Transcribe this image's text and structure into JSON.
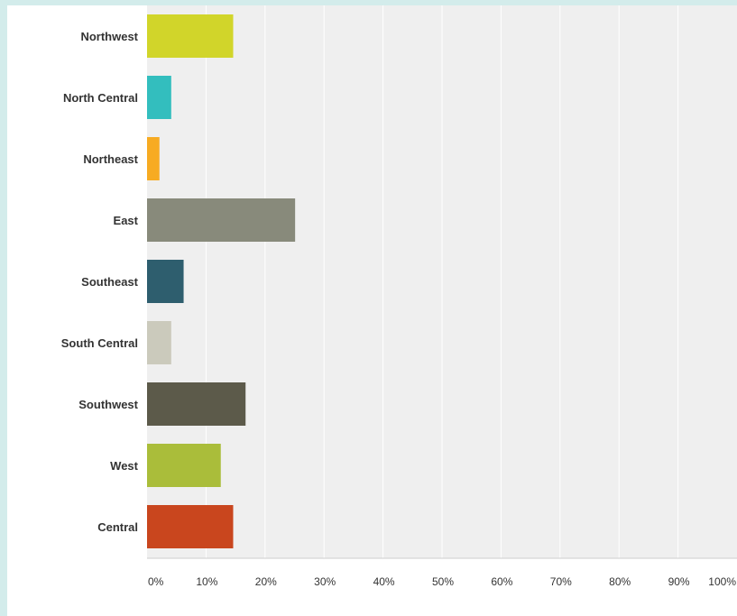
{
  "chart_data": {
    "type": "bar",
    "orientation": "horizontal",
    "categories": [
      "Northwest",
      "North Central",
      "Northeast",
      "East",
      "Southeast",
      "South Central",
      "Southwest",
      "West",
      "Central"
    ],
    "values": [
      14.6,
      4.1,
      2.1,
      25.1,
      6.2,
      4.1,
      16.7,
      12.5,
      14.6
    ],
    "colors": [
      "#d1d52a",
      "#33bebe",
      "#f7ab22",
      "#888a7b",
      "#2e5e6e",
      "#cbcabc",
      "#5c5a4a",
      "#aabd3a",
      "#c9461e"
    ],
    "xlim": [
      0,
      100
    ],
    "x_ticks": [
      "0%",
      "10%",
      "20%",
      "30%",
      "40%",
      "50%",
      "60%",
      "70%",
      "80%",
      "90%",
      "100%"
    ],
    "grid": true,
    "plot_background": "#efefef",
    "legend": "none",
    "title": "",
    "xlabel": "",
    "ylabel": ""
  }
}
